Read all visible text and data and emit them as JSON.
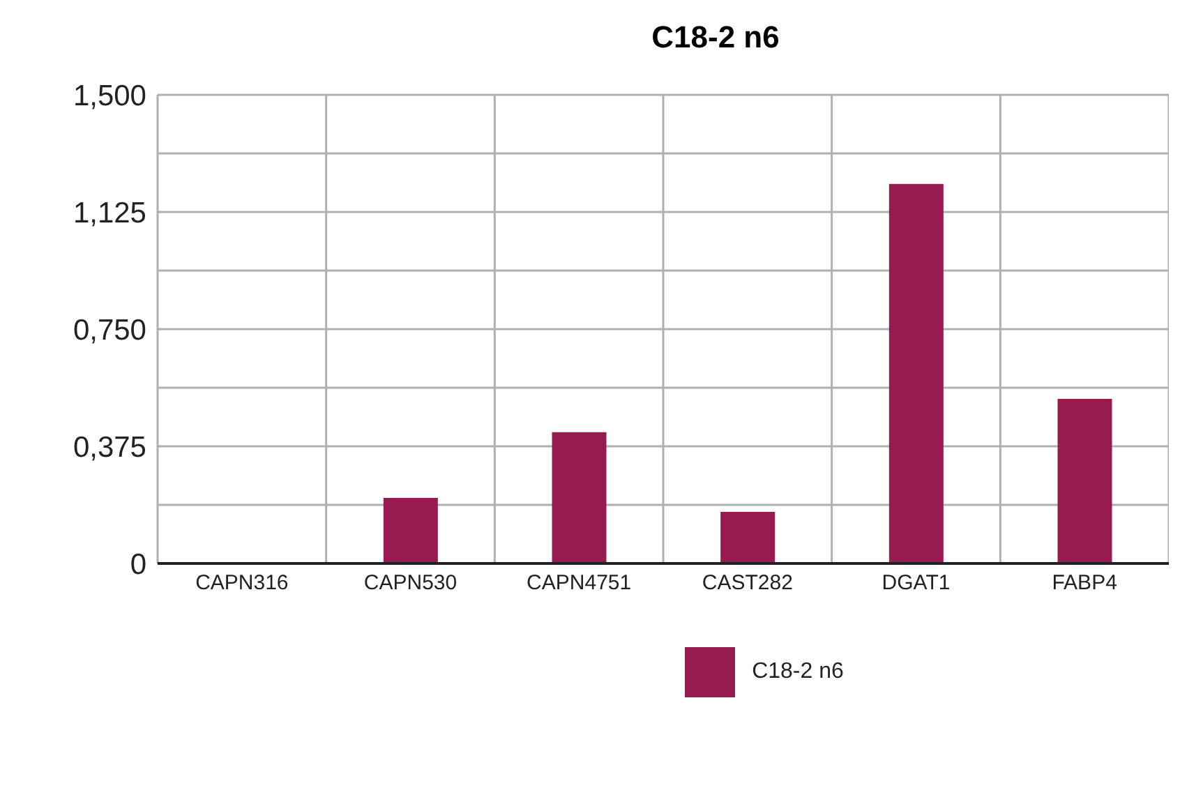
{
  "chart_data": {
    "type": "bar",
    "title": "C18-2 n6",
    "categories": [
      "CAPN316",
      "CAPN530",
      "CAPN4751",
      "CAST282",
      "DGAT1",
      "FABP4"
    ],
    "series": [
      {
        "name": "C18-2 n6",
        "color": "#971b4f",
        "values": [
          0,
          0.21,
          0.42,
          0.165,
          1.215,
          0.527
        ]
      }
    ],
    "ylim": [
      0,
      1.5
    ],
    "yticks": [
      {
        "value": 0,
        "label": "0"
      },
      {
        "value": 0.1875,
        "label": null
      },
      {
        "value": 0.375,
        "label": "0,375"
      },
      {
        "value": 0.5625,
        "label": null
      },
      {
        "value": 0.75,
        "label": "0,750"
      },
      {
        "value": 0.9375,
        "label": null
      },
      {
        "value": 1.125,
        "label": "1,125"
      },
      {
        "value": 1.3125,
        "label": null
      },
      {
        "value": 1.5,
        "label": "1,500"
      }
    ],
    "grid": true,
    "legend": "bottom"
  }
}
